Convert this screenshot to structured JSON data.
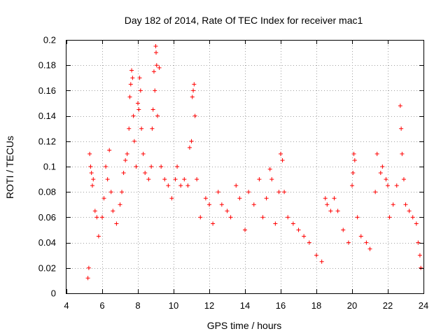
{
  "chart_data": {
    "type": "scatter",
    "title": "Day 182 of 2014, Rate Of TEC Index for receiver mac1",
    "xlabel": "GPS time / hours",
    "ylabel": "ROTI / TECUs",
    "xlim": [
      4,
      24
    ],
    "ylim": [
      0,
      0.2
    ],
    "x_ticks": [
      4,
      6,
      8,
      10,
      12,
      14,
      16,
      18,
      20,
      22,
      24
    ],
    "x_tick_labels": [
      "4",
      "6",
      "8",
      "10",
      "12",
      "14",
      "16",
      "18",
      "20",
      "22",
      "24"
    ],
    "y_ticks": [
      0,
      0.02,
      0.04,
      0.06,
      0.08,
      0.1,
      0.12,
      0.14,
      0.16,
      0.18,
      0.2
    ],
    "y_tick_labels": [
      "0",
      "0.02",
      "0.04",
      "0.06",
      "0.08",
      "0.1",
      "0.12",
      "0.14",
      "0.16",
      "0.18",
      "0.2"
    ],
    "grid": true,
    "marker": "plus",
    "color": "#ff0000",
    "series": [
      {
        "name": "mac1",
        "points": [
          [
            5.2,
            0.012
          ],
          [
            5.25,
            0.02
          ],
          [
            5.3,
            0.11
          ],
          [
            5.35,
            0.1
          ],
          [
            5.4,
            0.095
          ],
          [
            5.45,
            0.085
          ],
          [
            5.5,
            0.09
          ],
          [
            5.6,
            0.065
          ],
          [
            5.7,
            0.06
          ],
          [
            5.8,
            0.045
          ],
          [
            6.0,
            0.06
          ],
          [
            6.1,
            0.075
          ],
          [
            6.2,
            0.1
          ],
          [
            6.3,
            0.09
          ],
          [
            6.4,
            0.113
          ],
          [
            6.5,
            0.08
          ],
          [
            6.6,
            0.065
          ],
          [
            6.8,
            0.055
          ],
          [
            7.0,
            0.07
          ],
          [
            7.1,
            0.08
          ],
          [
            7.2,
            0.095
          ],
          [
            7.3,
            0.105
          ],
          [
            7.4,
            0.11
          ],
          [
            7.5,
            0.13
          ],
          [
            7.55,
            0.155
          ],
          [
            7.6,
            0.165
          ],
          [
            7.65,
            0.176
          ],
          [
            7.7,
            0.17
          ],
          [
            7.75,
            0.14
          ],
          [
            7.8,
            0.12
          ],
          [
            7.9,
            0.1
          ],
          [
            8.0,
            0.15
          ],
          [
            8.05,
            0.145
          ],
          [
            8.1,
            0.17
          ],
          [
            8.15,
            0.16
          ],
          [
            8.2,
            0.13
          ],
          [
            8.3,
            0.11
          ],
          [
            8.4,
            0.095
          ],
          [
            8.6,
            0.09
          ],
          [
            8.75,
            0.1
          ],
          [
            8.8,
            0.13
          ],
          [
            8.85,
            0.145
          ],
          [
            8.9,
            0.175
          ],
          [
            8.95,
            0.16
          ],
          [
            9.0,
            0.195
          ],
          [
            9.02,
            0.19
          ],
          [
            9.05,
            0.18
          ],
          [
            9.1,
            0.14
          ],
          [
            9.2,
            0.178
          ],
          [
            9.3,
            0.1
          ],
          [
            9.5,
            0.09
          ],
          [
            9.7,
            0.085
          ],
          [
            9.9,
            0.075
          ],
          [
            10.1,
            0.09
          ],
          [
            10.2,
            0.1
          ],
          [
            10.4,
            0.085
          ],
          [
            10.6,
            0.09
          ],
          [
            10.8,
            0.085
          ],
          [
            10.9,
            0.115
          ],
          [
            11.0,
            0.12
          ],
          [
            11.05,
            0.155
          ],
          [
            11.1,
            0.16
          ],
          [
            11.15,
            0.165
          ],
          [
            11.2,
            0.14
          ],
          [
            11.3,
            0.09
          ],
          [
            11.5,
            0.06
          ],
          [
            11.8,
            0.075
          ],
          [
            12.0,
            0.07
          ],
          [
            12.2,
            0.055
          ],
          [
            12.5,
            0.08
          ],
          [
            12.7,
            0.07
          ],
          [
            13.0,
            0.065
          ],
          [
            13.2,
            0.06
          ],
          [
            13.5,
            0.085
          ],
          [
            13.7,
            0.075
          ],
          [
            14.0,
            0.05
          ],
          [
            14.2,
            0.08
          ],
          [
            14.5,
            0.07
          ],
          [
            14.8,
            0.09
          ],
          [
            15.0,
            0.06
          ],
          [
            15.2,
            0.075
          ],
          [
            15.4,
            0.098
          ],
          [
            15.5,
            0.09
          ],
          [
            15.7,
            0.055
          ],
          [
            15.9,
            0.08
          ],
          [
            16.0,
            0.11
          ],
          [
            16.1,
            0.105
          ],
          [
            16.2,
            0.08
          ],
          [
            16.4,
            0.06
          ],
          [
            16.7,
            0.055
          ],
          [
            17.0,
            0.05
          ],
          [
            17.3,
            0.045
          ],
          [
            17.6,
            0.04
          ],
          [
            18.0,
            0.03
          ],
          [
            18.3,
            0.025
          ],
          [
            18.5,
            0.075
          ],
          [
            18.6,
            0.07
          ],
          [
            18.8,
            0.065
          ],
          [
            19.0,
            0.075
          ],
          [
            19.2,
            0.065
          ],
          [
            19.5,
            0.05
          ],
          [
            19.8,
            0.04
          ],
          [
            20.0,
            0.085
          ],
          [
            20.05,
            0.095
          ],
          [
            20.1,
            0.11
          ],
          [
            20.15,
            0.105
          ],
          [
            20.3,
            0.06
          ],
          [
            20.5,
            0.045
          ],
          [
            20.8,
            0.04
          ],
          [
            21.0,
            0.035
          ],
          [
            21.3,
            0.08
          ],
          [
            21.4,
            0.11
          ],
          [
            21.6,
            0.095
          ],
          [
            21.7,
            0.1
          ],
          [
            21.9,
            0.09
          ],
          [
            22.0,
            0.085
          ],
          [
            22.1,
            0.06
          ],
          [
            22.3,
            0.07
          ],
          [
            22.5,
            0.085
          ],
          [
            22.7,
            0.148
          ],
          [
            22.75,
            0.13
          ],
          [
            22.8,
            0.11
          ],
          [
            22.9,
            0.09
          ],
          [
            23.0,
            0.07
          ],
          [
            23.2,
            0.065
          ],
          [
            23.4,
            0.06
          ],
          [
            23.6,
            0.055
          ],
          [
            23.7,
            0.04
          ],
          [
            23.8,
            0.03
          ],
          [
            23.85,
            0.02
          ]
        ]
      }
    ]
  }
}
